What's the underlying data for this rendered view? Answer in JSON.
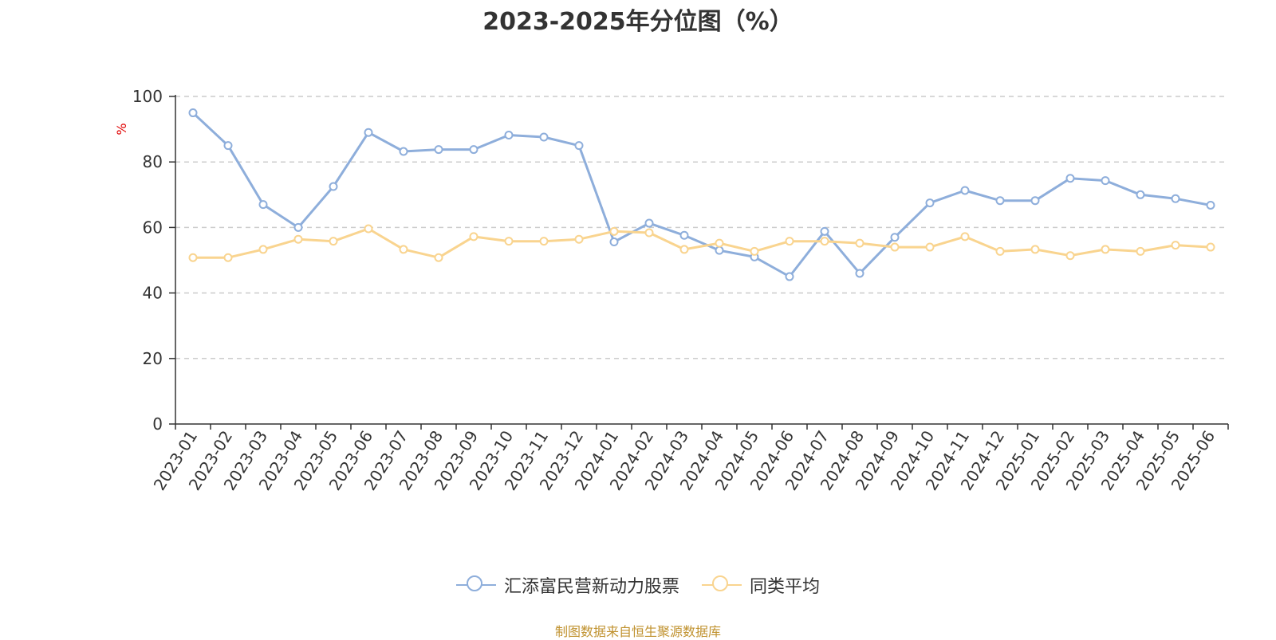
{
  "chart_data": {
    "type": "line",
    "title": "2023-2025年分位图（%）",
    "ylabel": "%",
    "xlabel": "",
    "ylim": [
      0,
      100
    ],
    "yticks": [
      0,
      20,
      40,
      60,
      80,
      100
    ],
    "grid": true,
    "legend_position": "bottom",
    "categories": [
      "2023-01",
      "2023-02",
      "2023-03",
      "2023-04",
      "2023-05",
      "2023-06",
      "2023-07",
      "2023-08",
      "2023-09",
      "2023-10",
      "2023-11",
      "2023-12",
      "2024-01",
      "2024-02",
      "2024-03",
      "2024-04",
      "2024-05",
      "2024-06",
      "2024-07",
      "2024-08",
      "2024-09",
      "2024-10",
      "2024-11",
      "2024-12",
      "2025-01",
      "2025-02",
      "2025-03",
      "2025-04",
      "2025-05",
      "2025-06"
    ],
    "series": [
      {
        "name": "汇添富民营新动力股票",
        "color": "#8eaedb",
        "values": [
          95,
          85,
          67,
          60,
          72.5,
          89,
          83.2,
          83.8,
          83.8,
          88.2,
          87.6,
          85,
          55.6,
          61.3,
          57.6,
          53,
          51,
          45,
          58.8,
          46,
          57,
          67.5,
          71.3,
          68.2,
          68.2,
          75,
          74.3,
          70,
          68.8,
          66.8
        ]
      },
      {
        "name": "同类平均",
        "color": "#f9d48f",
        "values": [
          50.8,
          50.8,
          53.3,
          56.4,
          55.8,
          59.6,
          53.3,
          50.8,
          57.2,
          55.8,
          55.8,
          56.4,
          58.8,
          58.4,
          53.3,
          55.2,
          52.7,
          55.8,
          55.8,
          55.2,
          54,
          54,
          57.2,
          52.7,
          53.3,
          51.4,
          53.3,
          52.7,
          54.6,
          54
        ]
      }
    ]
  },
  "footer": {
    "source": "制图数据来自恒生聚源数据库"
  }
}
